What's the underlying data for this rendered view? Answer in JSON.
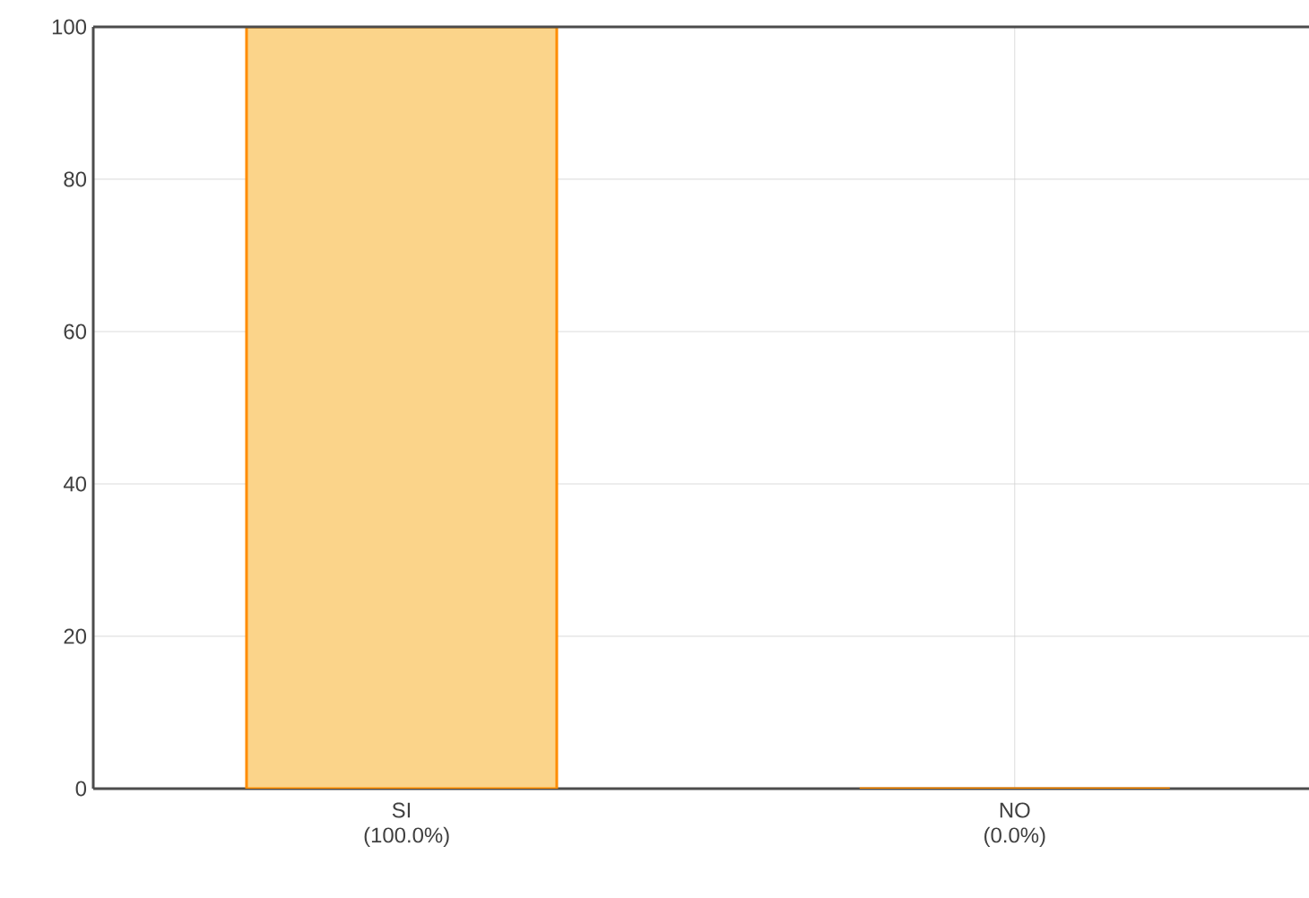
{
  "chart_data": {
    "type": "bar",
    "categories": [
      "SI (100.0%)",
      "NO (0.0%)"
    ],
    "values": [
      100,
      0
    ],
    "color": "#fbd48a",
    "ylim": [
      0,
      100
    ],
    "yticks": [
      0,
      20,
      40,
      60,
      80,
      100
    ],
    "grid": true
  }
}
